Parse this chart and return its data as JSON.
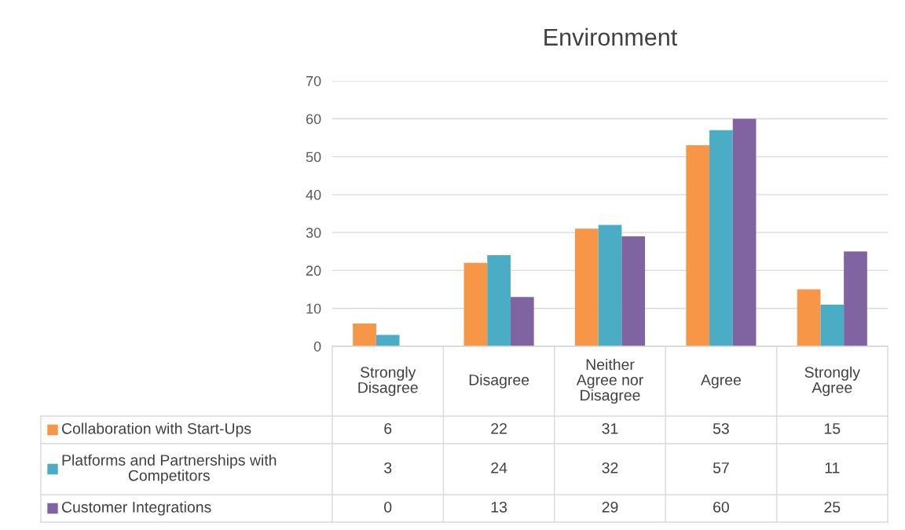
{
  "chart_data": {
    "type": "bar",
    "title": "Environment",
    "categories": [
      "Strongly Disagree",
      "Disagree",
      "Neither Agree nor Disagree",
      "Agree",
      "Strongly Agree"
    ],
    "series": [
      {
        "name": "Collaboration with Start-Ups",
        "color": "#f79646",
        "values": [
          6,
          22,
          31,
          53,
          15
        ]
      },
      {
        "name": "Platforms and Partnerships with Competitors",
        "color": "#4bacc6",
        "values": [
          3,
          24,
          32,
          57,
          11
        ]
      },
      {
        "name": "Customer Integrations",
        "color": "#8064a2",
        "values": [
          0,
          13,
          29,
          60,
          25
        ]
      }
    ],
    "ylim": [
      0,
      70
    ],
    "yticks": [
      0,
      10,
      20,
      30,
      40,
      50,
      60,
      70
    ],
    "grid": "y",
    "data_labels": true,
    "legend": "bottom left"
  }
}
